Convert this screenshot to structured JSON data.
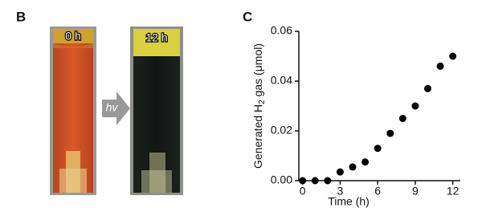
{
  "panel_b": {
    "label": "B",
    "photos": [
      "0 h",
      "12 h"
    ],
    "arrow_label": "hv"
  },
  "chart_data": {
    "type": "scatter",
    "panel_label": "C",
    "xlabel": "Time (h)",
    "ylabel": [
      "Generated H",
      "2",
      " gas (μmol)"
    ],
    "x": [
      0,
      1,
      2,
      3,
      4,
      5,
      6,
      7,
      8,
      9,
      10,
      11,
      12
    ],
    "values": [
      0,
      0,
      0,
      0.0035,
      0.0055,
      0.0075,
      0.013,
      0.019,
      0.025,
      0.03,
      0.037,
      0.046,
      0.05
    ],
    "color": "#000000",
    "xlim": [
      -0.3,
      12.6
    ],
    "ylim": [
      0,
      0.06
    ],
    "xticks": [
      0,
      3,
      6,
      9,
      12
    ],
    "yticks": [
      {
        "value": 0,
        "label": "0.00"
      },
      {
        "value": 0.02,
        "label": "0.02"
      },
      {
        "value": 0.04,
        "label": "0.04"
      },
      {
        "value": 0.06,
        "label": "0.06"
      }
    ]
  }
}
